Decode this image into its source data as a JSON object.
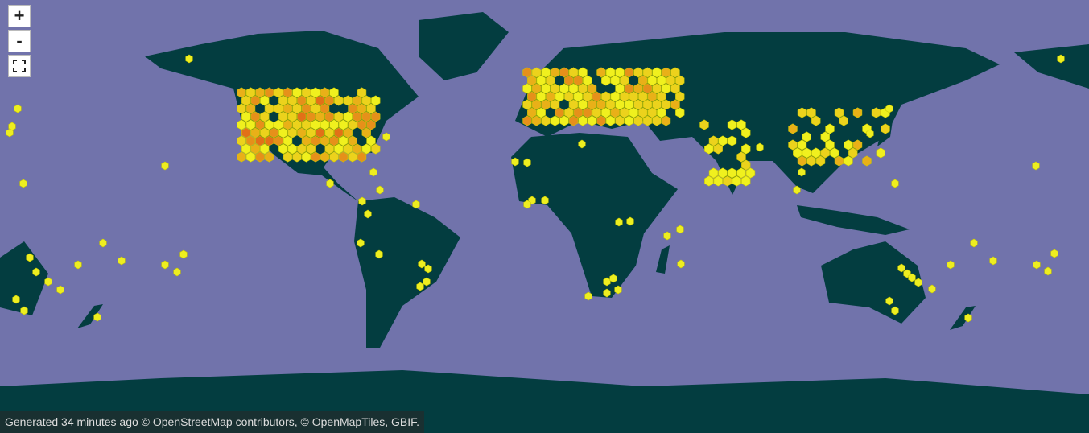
{
  "controls": {
    "zoom_in": "+",
    "zoom_out": "-"
  },
  "attribution": "Generated 34 minutes ago © OpenStreetMap contributors, © OpenMapTiles, GBIF."
}
